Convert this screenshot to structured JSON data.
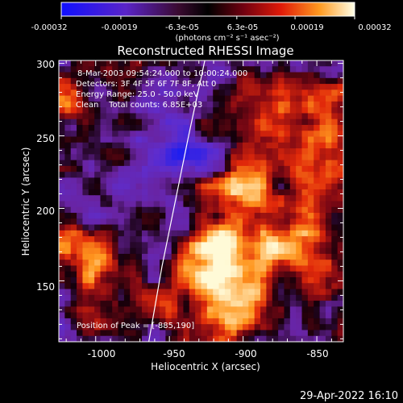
{
  "colorbar": {
    "ticks": [
      "-0.00032",
      "-0.00019",
      "-6.3e-05",
      "6.3e-05",
      "0.00019",
      "0.00032"
    ],
    "unit_label": "(photons cm⁻² s⁻¹ asec⁻²)",
    "range": [
      -0.00032,
      0.00032
    ]
  },
  "image": {
    "title": "Reconstructed RHESSI Image",
    "info_lines": [
      "8-Mar-2003 09:54:24.000 to 10:00:24.000",
      "Detectors: 3F 4F 5F 6F 7F 8F, Att 0",
      "Energy Range: 25.0 - 50.0 keV",
      "Clean    Total counts: 6.85E+03"
    ],
    "peak_label": "Position of Peak = [-885,190]",
    "xlabel": "Heliocentric X (arcsec)",
    "ylabel": "Heliocentric Y (arcsec)",
    "x_ticks": [
      "-1000",
      "-950",
      "-900",
      "-850"
    ],
    "y_ticks": [
      "150",
      "200",
      "250",
      "300"
    ],
    "xlim": [
      -1025,
      -832
    ],
    "ylim": [
      108,
      302
    ],
    "limb_curve": [
      [
        -964,
        108
      ],
      [
        -955,
        160
      ],
      [
        -946,
        205
      ],
      [
        -937,
        250
      ],
      [
        -926,
        302
      ]
    ]
  },
  "footer": {
    "timestamp": "29-Apr-2022 16:10"
  }
}
